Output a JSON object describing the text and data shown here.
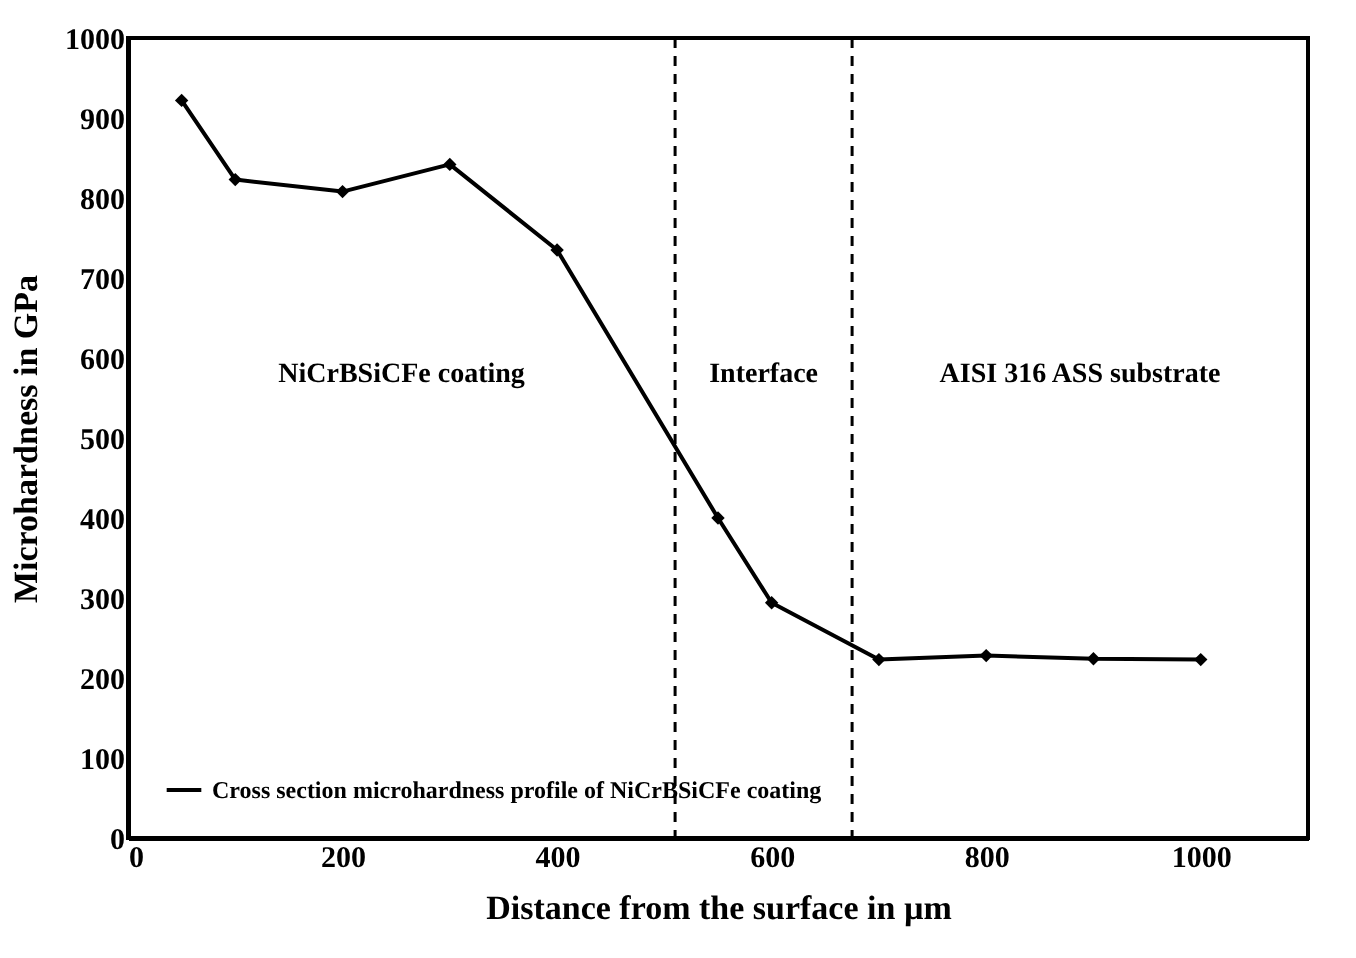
{
  "chart_data": {
    "type": "line",
    "xlabel": "Distance from the surface in µm",
    "ylabel": "Microhardness in GPa",
    "x": [
      50,
      100,
      200,
      300,
      400,
      550,
      600,
      700,
      800,
      900,
      1000
    ],
    "series": [
      {
        "name": "Cross section microhardness profile of NiCrBSiCFe coating",
        "color": "#000000",
        "values": [
          922,
          823,
          808,
          842,
          735,
          400,
          294,
          223,
          228,
          224,
          223
        ]
      }
    ],
    "xlim": [
      0,
      1100
    ],
    "xticks": [
      0,
      200,
      400,
      600,
      800,
      1000
    ],
    "ylim": [
      0,
      1000
    ],
    "yticks": [
      0,
      100,
      200,
      300,
      400,
      500,
      600,
      700,
      800,
      900,
      1000
    ],
    "ref_lines": [
      {
        "axis": "x",
        "value": 510,
        "color": "#000000",
        "line_style": "dashed"
      },
      {
        "axis": "x",
        "value": 675,
        "color": "#000000",
        "line_style": "dashed"
      }
    ],
    "annotations": [
      "NiCrBSiCFe coating",
      "Interface",
      "AISI 316 ASS substrate"
    ],
    "grid": false,
    "legend": "bottom left",
    "marker": "diamond",
    "line_style": "solid"
  }
}
